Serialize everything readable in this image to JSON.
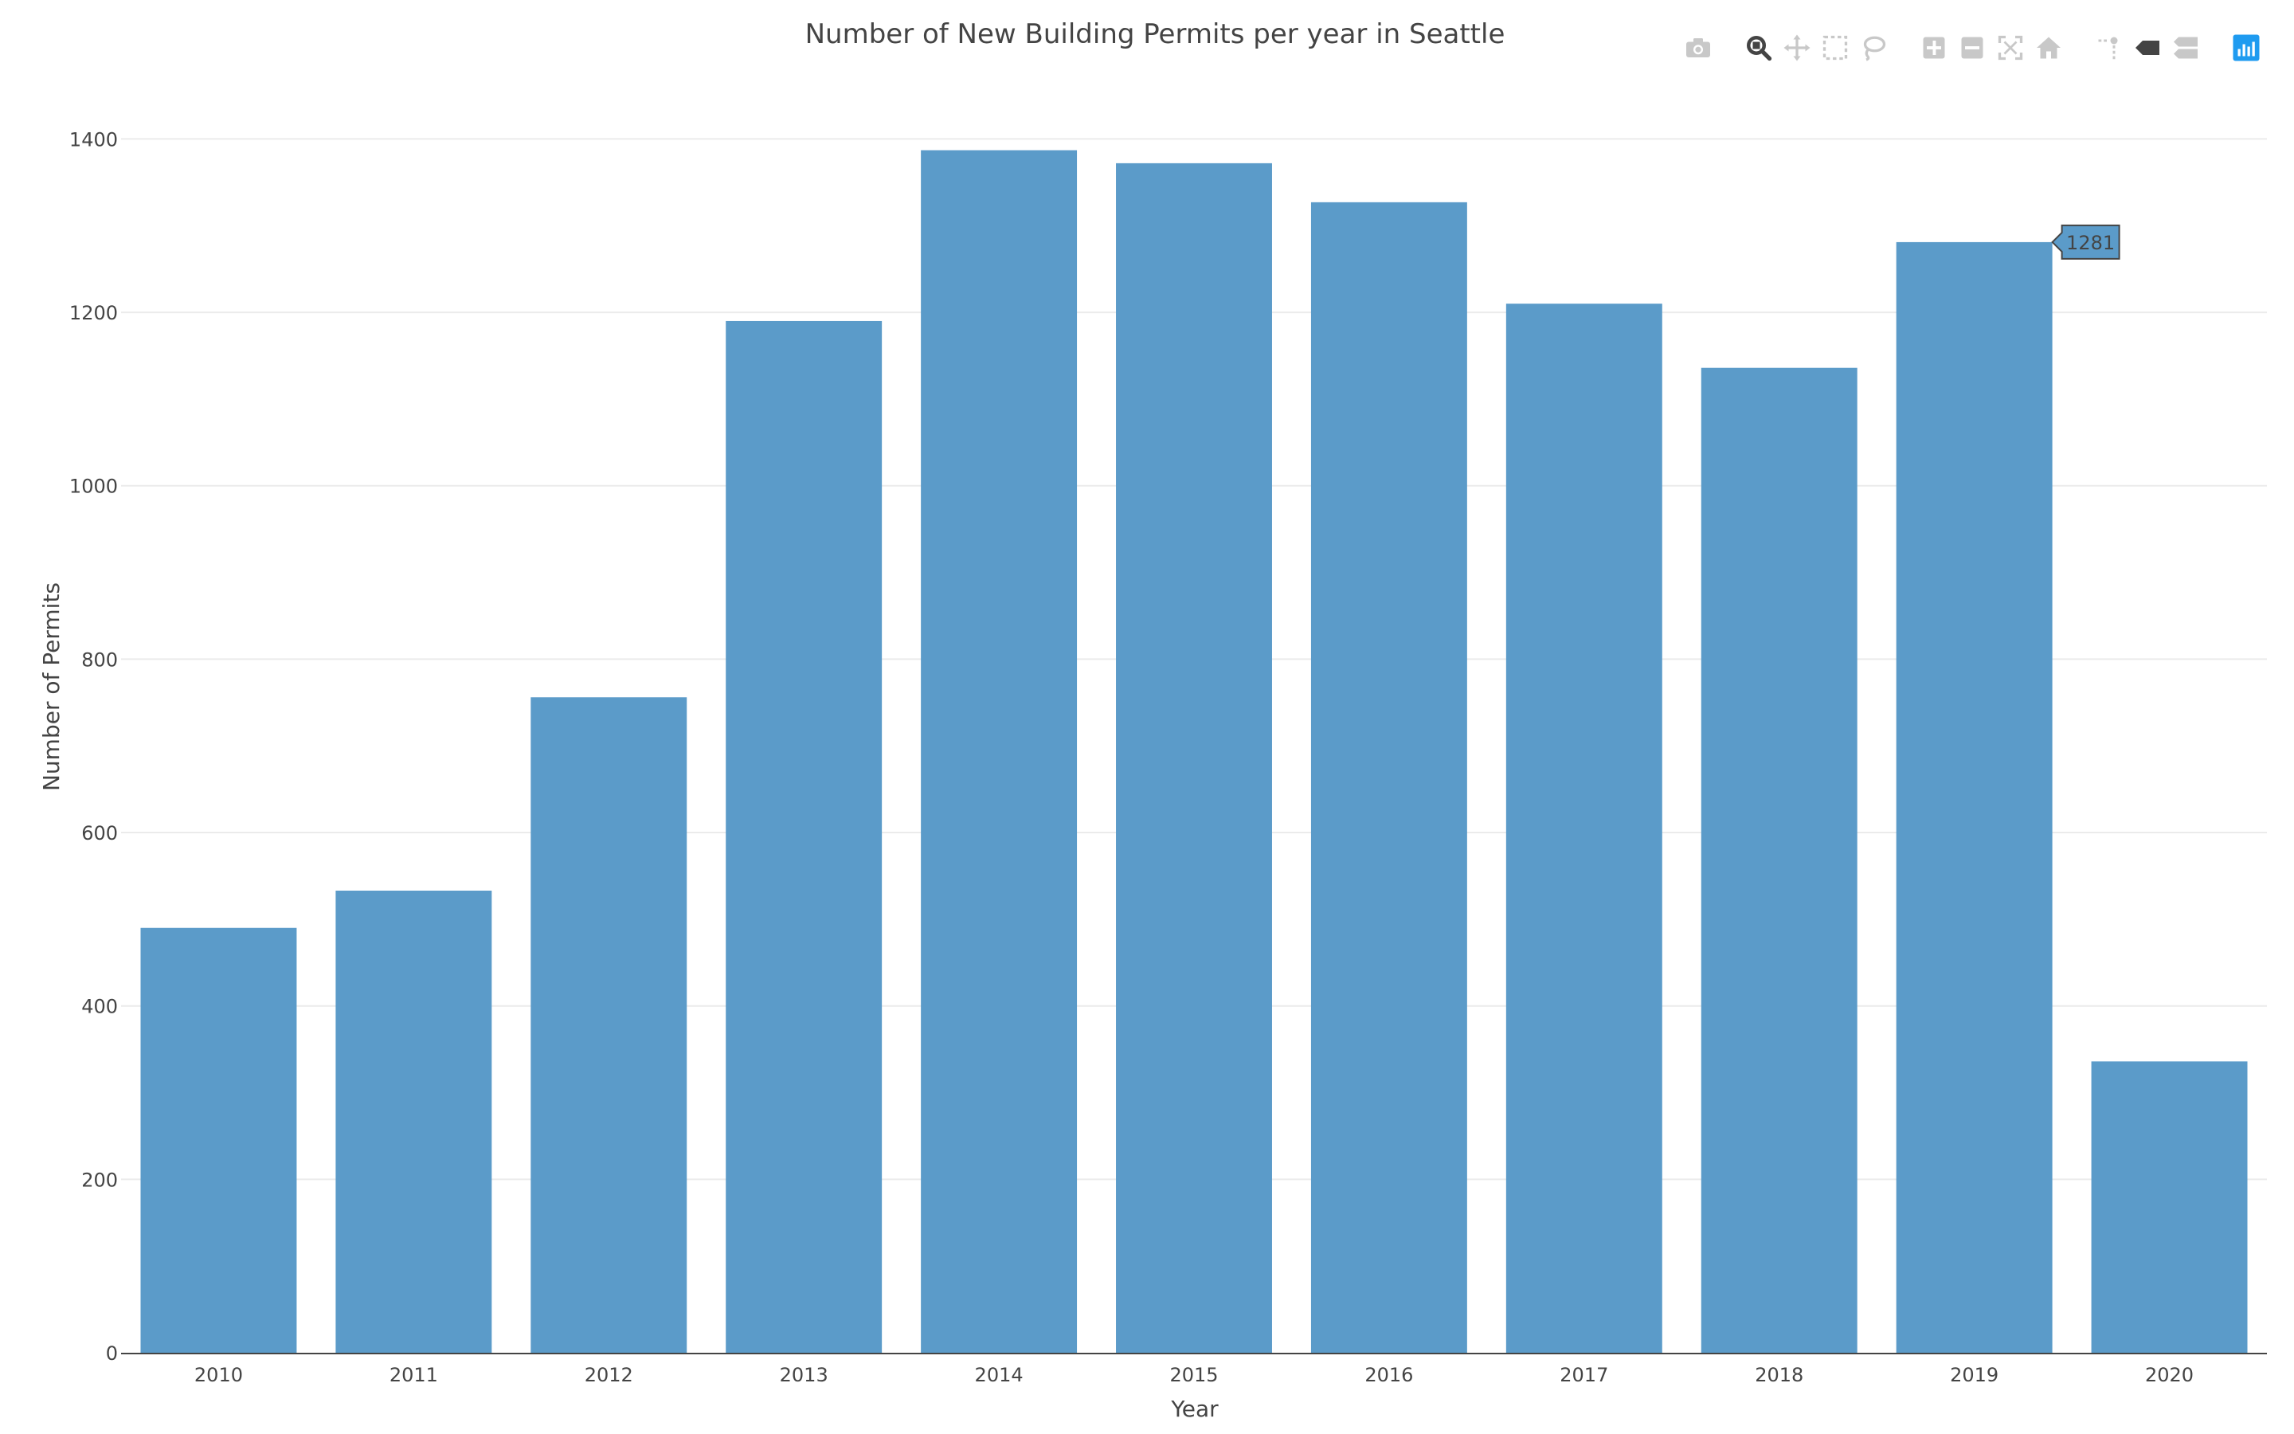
{
  "chart_data": {
    "type": "bar",
    "title": "Number of New Building Permits per year in Seattle",
    "xlabel": "Year",
    "ylabel": "Number of Permits",
    "categories": [
      "2010",
      "2011",
      "2012",
      "2013",
      "2014",
      "2015",
      "2016",
      "2017",
      "2018",
      "2019",
      "2020"
    ],
    "values": [
      490,
      533,
      756,
      1190,
      1387,
      1372,
      1327,
      1210,
      1136,
      1281,
      336
    ],
    "ylim": [
      0,
      1450
    ],
    "yticks": [
      0,
      200,
      400,
      600,
      800,
      1000,
      1200,
      1400
    ],
    "grid": true,
    "bar_color": "#5b9bc9",
    "hover": {
      "category": "2019",
      "label": "1281"
    }
  },
  "modebar": {
    "icons": [
      "camera-icon",
      "zoom-icon",
      "pan-icon",
      "box-select-icon",
      "lasso-select-icon",
      "zoom-in-icon",
      "zoom-out-icon",
      "autoscale-icon",
      "reset-axes-icon",
      "spike-lines-icon",
      "hover-closest-icon",
      "hover-compare-icon",
      "plotly-logo-icon"
    ],
    "active_color": "#444444",
    "inactive_color": "#c8c8c8",
    "brand_color": "#1f9bf0"
  }
}
